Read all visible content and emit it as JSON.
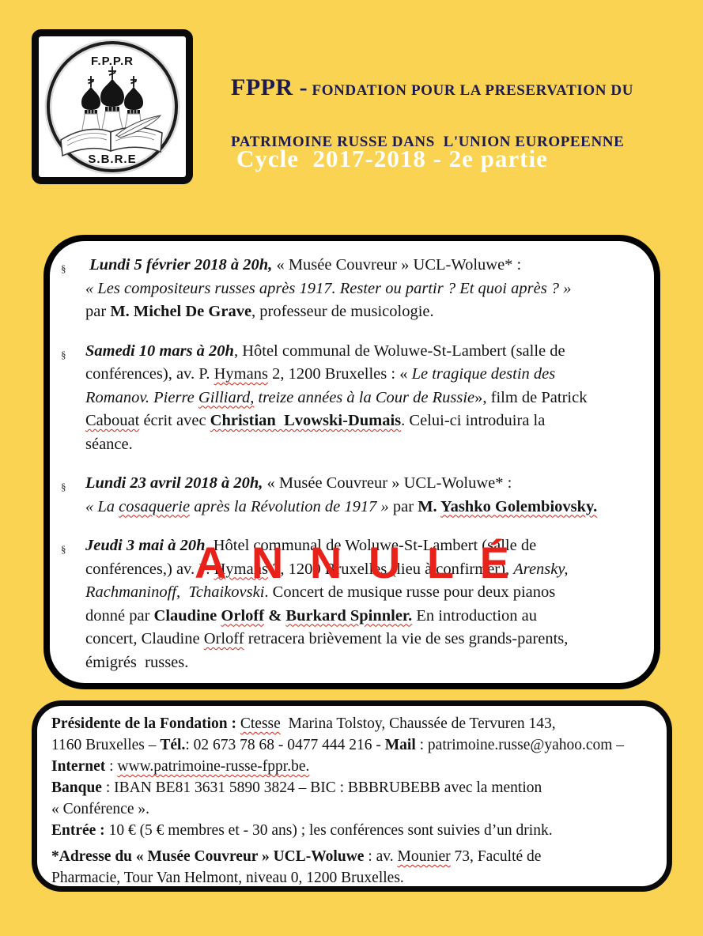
{
  "colors": {
    "background": "#F9D351",
    "header_text": "#1C1A4E",
    "subtitle_text": "#FFFFFF",
    "stamp_red": "#E8221B",
    "squiggle_red": "#CF2418",
    "box_border": "#000000",
    "box_fill": "#FFFFFF"
  },
  "logo": {
    "top_text": "F.P.P.R",
    "bottom_text": "S.B.R.E"
  },
  "header": {
    "acronym": "FPPR -",
    "line1_rest": " FONDATION POUR LA PRESERVATION DU",
    "line2": "PATRIMOINE RUSSE DANS  L'UNION EUROPEENNE",
    "cycle": "Cycle  2017-2018 - 2e partie"
  },
  "stamp": {
    "text": "A N N U L É"
  },
  "events": [
    {
      "mark": "§",
      "lines": [
        [
          {
            "t": " Lundi 5 février 2018 à 20h,",
            "b": true,
            "i": true
          },
          {
            "t": " « Musée Couvreur » UCL-Woluwe* :"
          }
        ],
        [
          {
            "t": "« Les compositeurs russes après 1917. Rester ou partir ? Et quoi après ? »",
            "i": true
          }
        ],
        [
          {
            "t": "par "
          },
          {
            "t": "M. Michel De Grave",
            "b": true
          },
          {
            "t": ", professeur de musicologie."
          }
        ]
      ]
    },
    {
      "mark": "§",
      "lines": [
        [
          {
            "t": "Samedi 10 mars à 20h",
            "b": true,
            "i": true
          },
          {
            "t": ", Hôtel communal de Woluwe-St-Lambert (salle de"
          }
        ],
        [
          {
            "t": "conférences), av. P. "
          },
          {
            "t": "Hymans",
            "sq": true
          },
          {
            "t": " 2, 1200 Bruxelles : « "
          },
          {
            "t": "Le tragique destin des",
            "i": true
          }
        ],
        [
          {
            "t": "Romanov. Pierre ",
            "i": true
          },
          {
            "t": "Gilliard,",
            "i": true,
            "sq": true
          },
          {
            "t": " treize années à la Cour de Russie",
            "i": true
          },
          {
            "t": "», film de Patrick"
          }
        ],
        [
          {
            "t": "Cabouat",
            "sq": true
          },
          {
            "t": " écrit avec "
          },
          {
            "t": "Christian  Lvowski-Dumais",
            "b": true,
            "sq": true
          },
          {
            "t": ". Celui-ci introduira la"
          }
        ],
        [
          {
            "t": "séance."
          }
        ]
      ]
    },
    {
      "mark": "§",
      "lines": [
        [
          {
            "t": "Lundi 23 avril 2018 à 20h,",
            "b": true,
            "i": true
          },
          {
            "t": " « Musée Couvreur » UCL-Woluwe* :"
          }
        ],
        [
          {
            "t": "« La ",
            "i": true
          },
          {
            "t": "cosaquerie",
            "i": true,
            "sq": true
          },
          {
            "t": " après la Révolution de 1917 »",
            "i": true
          },
          {
            "t": " par "
          },
          {
            "t": "M. ",
            "b": true
          },
          {
            "t": "Yashko Golembiovsky.",
            "b": true,
            "sq": true
          }
        ]
      ]
    },
    {
      "mark": "§",
      "lines": [
        [
          {
            "t": "Jeudi 3 mai à 20h",
            "b": true,
            "i": true
          },
          {
            "t": ", Hôtel communal de Woluwe-St-Lambert (salle de"
          }
        ],
        [
          {
            "t": "conférences,) av. P. "
          },
          {
            "t": "Hymans",
            "sq": true
          },
          {
            "t": " 2, 1200 Bruxelles (lieu à confirmer), "
          },
          {
            "t": "Arensky,",
            "i": true
          }
        ],
        [
          {
            "t": "Rachmaninoff,  Tchaikovski",
            "i": true
          },
          {
            "t": ". Concert de musique russe pour deux pianos"
          }
        ],
        [
          {
            "t": "donné par "
          },
          {
            "t": "Claudine ",
            "b": true
          },
          {
            "t": "Orloff",
            "b": true,
            "sq": true
          },
          {
            "t": " & ",
            "b": true
          },
          {
            "t": "Burkard Spinnler.",
            "b": true,
            "sq": true
          },
          {
            "t": " En introduction au"
          }
        ],
        [
          {
            "t": "concert, Claudine "
          },
          {
            "t": "Orloff",
            "sq": true
          },
          {
            "t": " retracera brièvement la vie de ses grands-parents,"
          }
        ],
        [
          {
            "t": "émigrés  russes."
          }
        ]
      ]
    }
  ],
  "footer": {
    "lines": [
      [
        {
          "t": "Présidente de la Fondation : ",
          "b": true
        },
        {
          "t": "Ctesse",
          "sq": true
        },
        {
          "t": "  Marina Tolstoy, Chaussée de Tervuren 143,"
        }
      ],
      [
        {
          "t": "1160 Bruxelles – "
        },
        {
          "t": "Tél.",
          "b": true
        },
        {
          "t": ": 02 673 78 68 - 0477 444 216 - "
        },
        {
          "t": "Mail",
          "b": true
        },
        {
          "t": " : patrimoine.russe@yahoo.com –"
        }
      ],
      [
        {
          "t": "Internet",
          "b": true
        },
        {
          "t": " : "
        },
        {
          "t": "www.patrimoine-russe-fppr.be.",
          "sq": true
        }
      ],
      [
        {
          "t": "Banque",
          "b": true
        },
        {
          "t": " : IBAN BE81 3631 5890 3824 – BIC : BBBRUBEBB avec la mention"
        }
      ],
      [
        {
          "t": "« Conférence »."
        }
      ],
      [
        {
          "t": "Entrée :",
          "b": true
        },
        {
          "t": " 10 € (5 € membres et - 30 ans) ; les conférences sont suivies d’un drink."
        }
      ],
      {
        "gap": true
      },
      [
        {
          "t": "*Adresse du « Musée Couvreur » UCL-Woluwe",
          "b": true
        },
        {
          "t": " : av. "
        },
        {
          "t": "Mounier",
          "sq": true
        },
        {
          "t": " 73, Faculté de"
        }
      ],
      [
        {
          "t": "Pharmacie, Tour Van Helmont, niveau 0, 1200 Bruxelles."
        }
      ]
    ]
  }
}
